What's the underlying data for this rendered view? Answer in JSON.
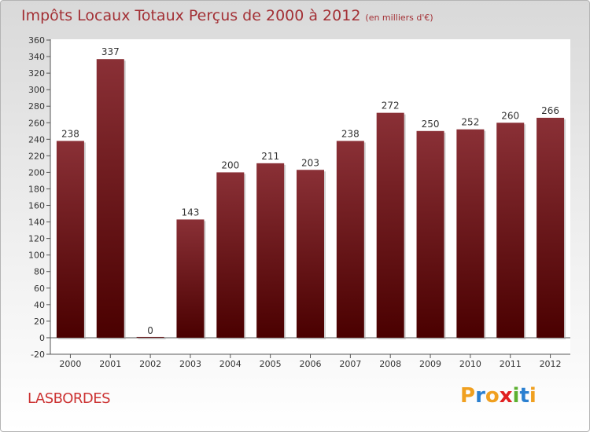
{
  "header": {
    "title": "Impôts Locaux Totaux Perçus de 2000 à 2012",
    "subtitle": "(en milliers d'€)"
  },
  "footer": {
    "commune": "LASBORDES",
    "logo_text": "Proxiti",
    "logo_colors": [
      "#f0a020",
      "#2a7fd0",
      "#f0a020",
      "#e02020",
      "#5cb030",
      "#2a7fd0",
      "#f0a020"
    ]
  },
  "chart_data": {
    "type": "bar",
    "categories": [
      "2000",
      "2001",
      "2002",
      "2003",
      "2004",
      "2005",
      "2006",
      "2007",
      "2008",
      "2009",
      "2010",
      "2011",
      "2012"
    ],
    "values": [
      238,
      337,
      0,
      143,
      200,
      211,
      203,
      238,
      272,
      250,
      252,
      260,
      266
    ],
    "title": "Impôts Locaux Totaux Perçus de 2000 à 2012",
    "xlabel": "",
    "ylabel": "",
    "ylim": [
      -20,
      360
    ],
    "yticks": [
      -20,
      0,
      20,
      40,
      60,
      80,
      100,
      120,
      140,
      160,
      180,
      200,
      220,
      240,
      260,
      280,
      300,
      320,
      340,
      360
    ],
    "grid": false,
    "bar_color_top": "#8a3036",
    "bar_color_bottom": "#4a0000",
    "plot_background": "#ffffff"
  }
}
